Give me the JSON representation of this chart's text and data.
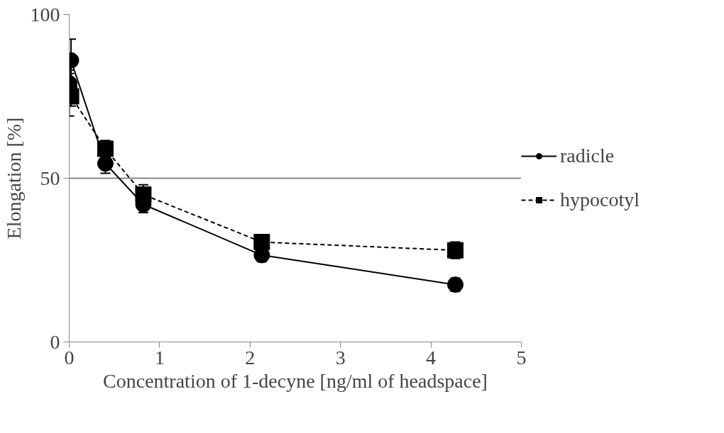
{
  "chart_data": {
    "type": "line",
    "xlabel": "Concentration of 1-decyne [ng/ml of headspace]",
    "ylabel": "Elongation [%]",
    "xlim": [
      0,
      5
    ],
    "xticks": [
      0,
      1,
      2,
      3,
      4,
      5
    ],
    "ylim": [
      0,
      100
    ],
    "yticks": [
      0,
      50,
      100
    ],
    "grid": "y",
    "legend": "right",
    "series": [
      {
        "name": "radicle",
        "color": "#000000",
        "marker": "circle",
        "line_style": "solid",
        "x": [
          0,
          0.02,
          0.4,
          0.82,
          2.13,
          4.27
        ],
        "values": [
          79,
          86,
          54.5,
          42,
          26.5,
          17.5
        ],
        "errors": [
          3,
          6.5,
          3,
          2.5,
          2,
          2
        ]
      },
      {
        "name": "hypocotyl",
        "color": "#000000",
        "marker": "square",
        "line_style": "dashed",
        "x": [
          0,
          0.02,
          0.4,
          0.82,
          2.13,
          4.27
        ],
        "values": [
          76,
          75,
          59,
          45,
          30.5,
          28
        ],
        "errors": [
          7,
          3,
          2.5,
          3,
          2,
          2.5
        ]
      }
    ]
  }
}
